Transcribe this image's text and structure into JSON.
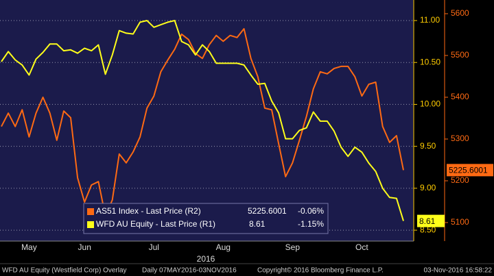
{
  "chart_data": {
    "type": "line",
    "categories": [
      null,
      null,
      null,
      null,
      "May",
      null,
      null,
      null,
      null,
      null,
      null,
      null,
      "Jun",
      null,
      null,
      null,
      null,
      null,
      null,
      null,
      null,
      null,
      "Jul",
      null,
      null,
      null,
      null,
      null,
      null,
      null,
      null,
      null,
      "Aug",
      null,
      null,
      null,
      null,
      null,
      null,
      null,
      null,
      null,
      "Sep",
      null,
      null,
      null,
      null,
      null,
      null,
      null,
      null,
      null,
      "Oct",
      null,
      null,
      null,
      null,
      null,
      null
    ],
    "x_label": "2016",
    "series": [
      {
        "name": "AS51 Index - Last Price (R2)",
        "color": "#ff6a13",
        "axis": "y2",
        "change": "-0.06%",
        "values": [
          5330,
          5362,
          5330,
          5370,
          5305,
          5362,
          5400,
          5362,
          5297,
          5367,
          5351,
          5207,
          5149,
          5190,
          5198,
          5116,
          5154,
          5264,
          5243,
          5269,
          5305,
          5374,
          5403,
          5461,
          5489,
          5515,
          5551,
          5538,
          5505,
          5493,
          5526,
          5548,
          5534,
          5548,
          5543,
          5564,
          5493,
          5449,
          5374,
          5370,
          5289,
          5210,
          5243,
          5297,
          5354,
          5420,
          5461,
          5456,
          5469,
          5474,
          5474,
          5449,
          5403,
          5431,
          5436,
          5330,
          5292,
          5308,
          5225.6001
        ]
      },
      {
        "name": "WFD AU Equity - Last Price (R1)",
        "color": "#ffff1a",
        "axis": "y",
        "change": "-1.15%",
        "values": [
          10.51,
          10.63,
          10.53,
          10.47,
          10.35,
          10.54,
          10.62,
          10.72,
          10.72,
          10.64,
          10.65,
          10.61,
          10.67,
          10.64,
          10.71,
          10.36,
          10.59,
          10.88,
          10.85,
          10.84,
          10.98,
          11.0,
          10.92,
          10.95,
          10.98,
          11.0,
          10.75,
          10.71,
          10.59,
          10.71,
          10.63,
          10.49,
          10.49,
          10.49,
          10.49,
          10.47,
          10.35,
          10.24,
          10.25,
          10.04,
          9.9,
          9.59,
          9.59,
          9.69,
          9.72,
          9.91,
          9.8,
          9.8,
          9.68,
          9.49,
          9.38,
          9.49,
          9.43,
          9.3,
          9.2,
          9.0,
          8.89,
          8.88,
          8.61
        ]
      }
    ],
    "ylim": [
      8.37,
      11.245
    ],
    "yticks": [
      {
        "value": 8.5,
        "label": "8.50"
      },
      {
        "value": 9,
        "label": "9.00"
      },
      {
        "value": 9.5,
        "label": "9.50"
      },
      {
        "value": 10,
        "label": "10.00"
      },
      {
        "value": 10.5,
        "label": "10.50"
      },
      {
        "value": 11,
        "label": "11.00"
      }
    ],
    "y2lim": [
      5055.7,
      5632.8
    ],
    "y2ticks": [
      5100,
      5200,
      5300,
      5400,
      5500,
      5600
    ],
    "grid": true,
    "legend": "bottom-left",
    "footer": [
      "WFD AU Equity (Westfield Corp) Overlay",
      "Daily 07MAY2016-03NOV2016",
      "Copyright© 2016 Bloomberg Finance L.P.",
      "03-Nov-2016 16:58:22"
    ]
  }
}
